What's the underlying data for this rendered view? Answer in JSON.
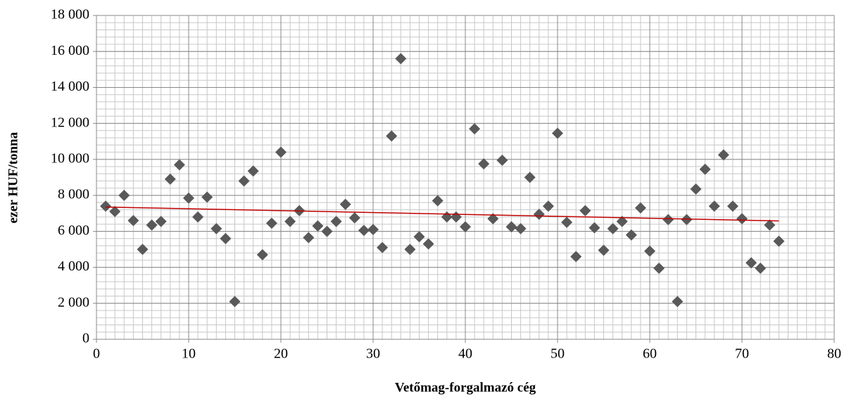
{
  "chart_data": {
    "type": "scatter",
    "x_label": "Vetőmag-forgalmazó cég",
    "y_label": "ezer HUF/tonna",
    "x": [
      1,
      2,
      3,
      4,
      5,
      6,
      7,
      8,
      9,
      10,
      11,
      12,
      13,
      14,
      15,
      16,
      17,
      18,
      19,
      20,
      21,
      22,
      23,
      24,
      25,
      26,
      27,
      28,
      29,
      30,
      31,
      32,
      33,
      34,
      35,
      36,
      37,
      38,
      39,
      40,
      41,
      42,
      43,
      44,
      45,
      46,
      47,
      48,
      49,
      50,
      51,
      52,
      53,
      54,
      55,
      56,
      57,
      58,
      59,
      60,
      61,
      62,
      63,
      64,
      65,
      66,
      67,
      68,
      69,
      70,
      71,
      72,
      73,
      74
    ],
    "series": [
      {
        "color": "#595959",
        "values": [
          7400,
          7100,
          8000,
          6600,
          5000,
          6350,
          6550,
          8900,
          9700,
          7850,
          6800,
          7900,
          6150,
          5600,
          2100,
          8800,
          9350,
          4700,
          6450,
          10400,
          6550,
          7150,
          5650,
          6300,
          6000,
          6550,
          7500,
          6750,
          6050,
          6100,
          5100,
          11300,
          15600,
          5000,
          5700,
          5300,
          7700,
          6800,
          6800,
          6250,
          11700,
          9750,
          6700,
          9950,
          6250,
          6150,
          9000,
          6950,
          7400,
          11450,
          6500,
          4600,
          7150,
          6200,
          4950,
          6150,
          6550,
          5800,
          7300,
          4900,
          3950,
          6650,
          2100,
          6650,
          8350,
          9450,
          7400,
          10250,
          7400,
          6700,
          4250,
          3950,
          6350,
          5450
        ]
      }
    ],
    "trendline": {
      "x": [
        1,
        74
      ],
      "values": [
        7350,
        6580
      ],
      "color": "#c00000"
    },
    "xlim": [
      0,
      80
    ],
    "xticks": [
      0,
      10,
      20,
      30,
      40,
      50,
      60,
      70,
      80
    ],
    "ylim": [
      0,
      18000
    ],
    "yticks": [
      0,
      {
        "value": 2000,
        "label": "2 000"
      },
      {
        "value": 4000,
        "label": "4 000"
      },
      {
        "value": 6000,
        "label": "6 000"
      },
      {
        "value": 8000,
        "label": "8 000"
      },
      {
        "value": 10000,
        "label": "10 000"
      },
      {
        "value": 12000,
        "label": "12 000"
      },
      {
        "value": 14000,
        "label": "14 000"
      },
      {
        "value": 16000,
        "label": "16 000"
      },
      {
        "value": 18000,
        "label": "18 000"
      }
    ],
    "grid": true,
    "minor_grid": {
      "x": 1,
      "y": 400
    }
  }
}
